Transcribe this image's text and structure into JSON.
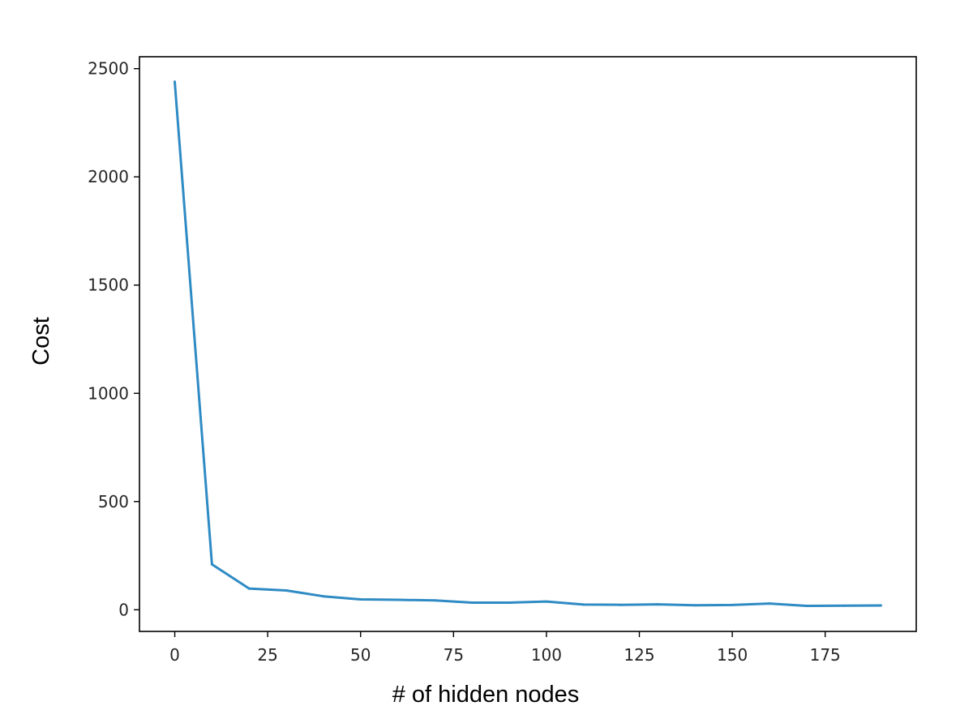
{
  "chart_data": {
    "type": "line",
    "title": "",
    "xlabel": "# of hidden nodes",
    "ylabel": "Cost",
    "x": [
      0,
      10,
      20,
      30,
      40,
      50,
      60,
      70,
      80,
      90,
      100,
      110,
      120,
      130,
      140,
      150,
      160,
      170,
      180,
      190
    ],
    "series": [
      {
        "name": "Cost",
        "color": "#2f8bc4",
        "values": [
          2440,
          210,
          98,
          89,
          62,
          48,
          46,
          43,
          33,
          33,
          38,
          24,
          23,
          25,
          21,
          22,
          29,
          18,
          19,
          20
        ]
      }
    ],
    "xlim": [
      -9.5,
      199.5
    ],
    "ylim": [
      -100,
      2555
    ],
    "xticks": [
      0,
      25,
      50,
      75,
      100,
      125,
      150,
      175
    ],
    "xtick_labels": [
      "0",
      "25",
      "50",
      "75",
      "100",
      "125",
      "150",
      "175"
    ],
    "yticks": [
      0,
      500,
      1000,
      1500,
      2000,
      2500
    ],
    "ytick_labels": [
      "0",
      "500",
      "1000",
      "1500",
      "2000",
      "2500"
    ],
    "grid": false,
    "legend": "none"
  }
}
